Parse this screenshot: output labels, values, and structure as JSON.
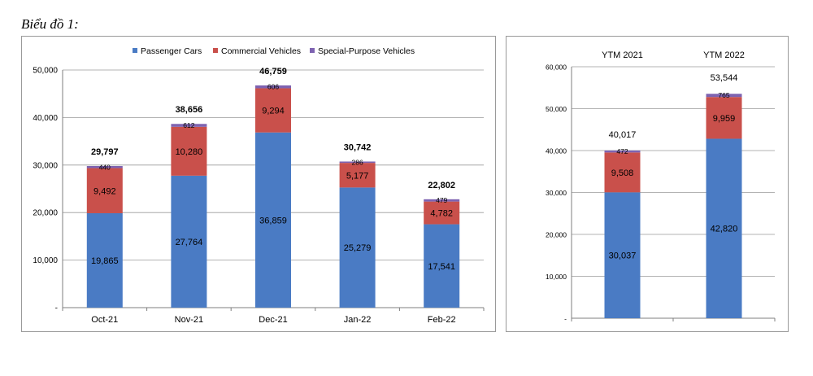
{
  "caption": "Biểu đồ 1:",
  "colors": {
    "passenger": "#4a7bc4",
    "commercial": "#c9504b",
    "special": "#7e63b1",
    "grid": "#9a9a9a",
    "axis": "#7f7f7f"
  },
  "chart_data": [
    {
      "type": "bar",
      "stacked": true,
      "categories": [
        "Oct-21",
        "Nov-21",
        "Dec-21",
        "Jan-22",
        "Feb-22"
      ],
      "series": [
        {
          "name": "Passenger Cars",
          "values": [
            19865,
            27764,
            36859,
            25279,
            17541
          ],
          "labels": [
            "19,865",
            "27,764",
            "36,859",
            "25,279",
            "17,541"
          ]
        },
        {
          "name": "Commercial Vehicles",
          "values": [
            9492,
            10280,
            9294,
            5177,
            4782
          ],
          "labels": [
            "9,492",
            "10,280",
            "9,294",
            "5,177",
            "4,782"
          ]
        },
        {
          "name": "Special-Purpose Vehicles",
          "values": [
            440,
            612,
            606,
            286,
            479
          ],
          "labels": [
            "440",
            "612",
            "606",
            "286",
            "479"
          ]
        }
      ],
      "totals": [
        "29,797",
        "38,656",
        "46,759",
        "30,742",
        "22,802"
      ],
      "ylim": [
        0,
        50000
      ],
      "yticks": [
        "-",
        "10,000",
        "20,000",
        "30,000",
        "40,000",
        "50,000"
      ],
      "legend": "top",
      "grid": true,
      "title": "",
      "xlabel": "",
      "ylabel": ""
    },
    {
      "type": "bar",
      "stacked": true,
      "categories": [
        "YTM 2021",
        "YTM 2022"
      ],
      "series": [
        {
          "name": "Passenger Cars",
          "values": [
            30037,
            42820
          ],
          "labels": [
            "30,037",
            "42,820"
          ]
        },
        {
          "name": "Commercial Vehicles",
          "values": [
            9508,
            9959
          ],
          "labels": [
            "9,508",
            "9,959"
          ]
        },
        {
          "name": "Special-Purpose Vehicles",
          "values": [
            472,
            765
          ],
          "labels": [
            "472",
            "765"
          ]
        }
      ],
      "totals": [
        "40,017",
        "53,544"
      ],
      "ylim": [
        0,
        60000
      ],
      "yticks": [
        "-",
        "10,000",
        "20,000",
        "30,000",
        "40,000",
        "50,000",
        "60,000"
      ],
      "category_axis": "top",
      "legend": "none",
      "grid": true,
      "title": "",
      "xlabel": "",
      "ylabel": ""
    }
  ]
}
